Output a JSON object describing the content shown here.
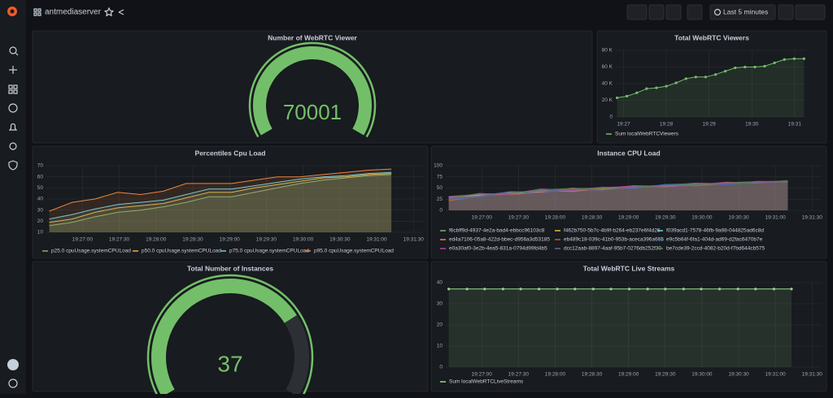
{
  "header": {
    "title": "antmediaserver"
  },
  "toolbar": {
    "time_range": "Last 5 minutes"
  },
  "panels": [
    {
      "chart_data": {
        "type": "gauge",
        "title": "Number of WebRTC Viewer",
        "value": 70001,
        "range": [
          0,
          70001
        ],
        "color": "#73bf69"
      }
    },
    {
      "chart_data": {
        "type": "line",
        "title": "Total WebRTC Viewers",
        "x": [
          26.85,
          27.08,
          27.31,
          27.54,
          27.77,
          28.0,
          28.23,
          28.46,
          28.69,
          28.92,
          29.15,
          29.38,
          29.61,
          29.84,
          30.07,
          30.3,
          30.53,
          30.76,
          30.99,
          31.22
        ],
        "series": [
          {
            "name": "Sum localWebRTCViewers",
            "color": "#73bf69",
            "values": [
              23000,
              25000,
              29000,
              34000,
              35000,
              37000,
              41000,
              46000,
              48000,
              48000,
              51000,
              55000,
              59000,
              60000,
              60000,
              61000,
              65000,
              69000,
              70000,
              70001
            ]
          }
        ],
        "xlim": [
          26.82,
          31.25
        ],
        "xticks": [
          {
            "value": 27,
            "label": "19:27"
          },
          {
            "value": 28,
            "label": "19:28"
          },
          {
            "value": 29,
            "label": "19:29"
          },
          {
            "value": 30,
            "label": "19:30"
          },
          {
            "value": 31,
            "label": "19:31"
          }
        ],
        "ylim": [
          0,
          80000
        ],
        "yticks": [
          0,
          {
            "value": 20000,
            "label": "20 K"
          },
          {
            "value": 40000,
            "label": "40 K"
          },
          {
            "value": 60000,
            "label": "60 K"
          },
          {
            "value": 80000,
            "label": "80 K"
          }
        ],
        "grid": true,
        "points": true
      }
    },
    {
      "chart_data": {
        "type": "line",
        "title": "Percentiles Cpu Load",
        "x": [
          26.55,
          26.86,
          27.17,
          27.48,
          27.79,
          28.1,
          28.41,
          28.72,
          29.03,
          29.34,
          29.65,
          29.96,
          30.27,
          30.58,
          30.89,
          31.2
        ],
        "series": [
          {
            "name": "p25.0 cpuUsage.systemCPULoad",
            "color": "#7eb26d",
            "values": [
              16,
              19,
              24,
              28,
              30,
              33,
              37,
              42,
              42,
              46,
              50,
              54,
              57,
              59,
              61,
              62
            ]
          },
          {
            "name": "p50.0 cpuUsage.systemCPULoad",
            "color": "#eab839",
            "values": [
              19,
              22,
              28,
              32,
              34,
              36,
              41,
              46,
              46,
              50,
              53,
              56,
              59,
              60,
              62,
              63
            ]
          },
          {
            "name": "p75.0 cpuUsage.systemCPULoad",
            "color": "#6ed0e0",
            "values": [
              22,
              26,
              31,
              35,
              37,
              39,
              44,
              49,
              49,
              52,
              55,
              58,
              60,
              61,
              63,
              64
            ]
          },
          {
            "name": "p95.0 cpuUsage.systemCPULoad",
            "color": "#ef843c",
            "values": [
              29,
              37,
              40,
              46,
              44,
              47,
              54,
              54,
              54,
              57,
              60,
              60,
              62,
              64,
              66,
              67
            ]
          }
        ],
        "xlim": [
          26.51,
          31.63
        ],
        "xticks": [
          {
            "value": 27,
            "label": "19:27:00"
          },
          {
            "value": 27.5,
            "label": "19:27:30"
          },
          {
            "value": 28,
            "label": "19:28:00"
          },
          {
            "value": 28.5,
            "label": "19:28:30"
          },
          {
            "value": 29,
            "label": "19:29:00"
          },
          {
            "value": 29.5,
            "label": "19:29:30"
          },
          {
            "value": 30,
            "label": "19:30:00"
          },
          {
            "value": 30.5,
            "label": "19:30:30"
          },
          {
            "value": 31,
            "label": "19:31:00"
          },
          {
            "value": 31.5,
            "label": "19:31:30"
          }
        ],
        "ylim": [
          10,
          70
        ],
        "yticks": [
          10,
          20,
          30,
          40,
          50,
          60,
          70
        ],
        "grid": true,
        "points": false
      }
    },
    {
      "chart_data": {
        "type": "line",
        "title": "Instance CPU Load",
        "x": [
          26.55,
          26.97,
          27.39,
          27.81,
          28.23,
          28.65,
          29.07,
          29.49,
          29.91,
          30.33,
          30.75,
          31.17
        ],
        "series": [
          {
            "name": "f6cbff9d-4937-4e2a-bad4-ebbcc96103c8",
            "color": "#7eb26d",
            "values": [
              28,
              35,
              38,
              42,
              45,
              48,
              52,
              55,
              57,
              60,
              62,
              64
            ]
          },
          {
            "name": "f462b750-5b7c-4b9f-b264-eb237e6f4d26",
            "color": "#eab839",
            "values": [
              25,
              33,
              40,
              41,
              47,
              46,
              53,
              56,
              58,
              61,
              63,
              65
            ]
          },
          {
            "name": "f039acd1-7578-46fb-9a98-044825ad6c8d",
            "color": "#6ed0e0",
            "values": [
              30,
              34,
              36,
              44,
              43,
              50,
              51,
              54,
              59,
              60,
              61,
              66
            ]
          },
          {
            "name": "ed4a7106-05a8-422d-bbec-d956a3d53185",
            "color": "#ef843c",
            "values": [
              22,
              31,
              39,
              45,
              42,
              49,
              55,
              53,
              56,
              62,
              64,
              63
            ]
          },
          {
            "name": "eb489c18-039c-41b0-953b-aceca396a665",
            "color": "#e24d42",
            "values": [
              27,
              38,
              35,
              40,
              50,
              47,
              50,
              57,
              55,
              59,
              65,
              64
            ]
          },
          {
            "name": "e9c5b64f-6fa1-404d-ad69-d2fac6470b7e",
            "color": "#1f78c1",
            "values": [
              24,
              30,
              41,
              43,
              46,
              52,
              49,
              58,
              60,
              58,
              62,
              67
            ]
          },
          {
            "name": "e0a30af0-3e2b-4ea5-831a-0794d99fd4b5",
            "color": "#ba43a9",
            "values": [
              31,
              36,
              37,
              48,
              44,
              51,
              54,
              52,
              57,
              63,
              61,
              65
            ]
          },
          {
            "name": "dcc12aab-8897-4aaf-95b7-0276db252f30",
            "color": "#705da0",
            "values": [
              26,
              32,
              42,
              39,
              48,
              45,
              53,
              55,
              61,
              60,
              63,
              64
            ]
          },
          {
            "name": "be7cde39-2ccd-4082-b20d-f7bd644cb575",
            "color": "#508642",
            "values": [
              29,
              37,
              38,
              46,
              49,
              50,
              52,
              56,
              58,
              61,
              64,
              66
            ]
          }
        ],
        "xlim": [
          26.51,
          31.63
        ],
        "xticks": [
          {
            "value": 27,
            "label": "19:27:00"
          },
          {
            "value": 27.5,
            "label": "19:27:30"
          },
          {
            "value": 28,
            "label": "19:28:00"
          },
          {
            "value": 28.5,
            "label": "19:28:30"
          },
          {
            "value": 29,
            "label": "19:29:00"
          },
          {
            "value": 29.5,
            "label": "19:29:30"
          },
          {
            "value": 30,
            "label": "19:30:00"
          },
          {
            "value": 30.5,
            "label": "19:30:30"
          },
          {
            "value": 31,
            "label": "19:31:00"
          },
          {
            "value": 31.5,
            "label": "19:31:30"
          }
        ],
        "ylim": [
          0,
          100
        ],
        "yticks": [
          0,
          25,
          50,
          75,
          100
        ],
        "grid": true,
        "points": false
      }
    },
    {
      "chart_data": {
        "type": "gauge",
        "title": "Total Number of Instances",
        "value": 37,
        "range": [
          0,
          50
        ],
        "color": "#73bf69"
      }
    },
    {
      "chart_data": {
        "type": "line",
        "title": "Total WebRTC Live Streams",
        "x": [
          26.55,
          26.8,
          27.04,
          27.29,
          27.53,
          27.78,
          28.03,
          28.27,
          28.52,
          28.76,
          29.01,
          29.26,
          29.5,
          29.75,
          29.99,
          30.24,
          30.49,
          30.73,
          30.98,
          31.22
        ],
        "series": [
          {
            "name": "Sum localWebRTCLiveStreams",
            "color": "#96d98d",
            "values": [
              37,
              37,
              37,
              37,
              37,
              37,
              37,
              37,
              37,
              37,
              37,
              37,
              37,
              37,
              37,
              37,
              37,
              37,
              37,
              37
            ]
          }
        ],
        "xlim": [
          26.51,
          31.63
        ],
        "xticks": [
          {
            "value": 27,
            "label": "19:27:00"
          },
          {
            "value": 27.5,
            "label": "19:27:30"
          },
          {
            "value": 28,
            "label": "19:28:00"
          },
          {
            "value": 28.5,
            "label": "19:28:30"
          },
          {
            "value": 29,
            "label": "19:29:00"
          },
          {
            "value": 29.5,
            "label": "19:29:30"
          },
          {
            "value": 30,
            "label": "19:30:00"
          },
          {
            "value": 30.5,
            "label": "19:30:30"
          },
          {
            "value": 31,
            "label": "19:31:00"
          },
          {
            "value": 31.5,
            "label": "19:31:30"
          }
        ],
        "ylim": [
          0,
          40
        ],
        "yticks": [
          0,
          10,
          20,
          30,
          40
        ],
        "grid": true,
        "points": true
      }
    }
  ]
}
